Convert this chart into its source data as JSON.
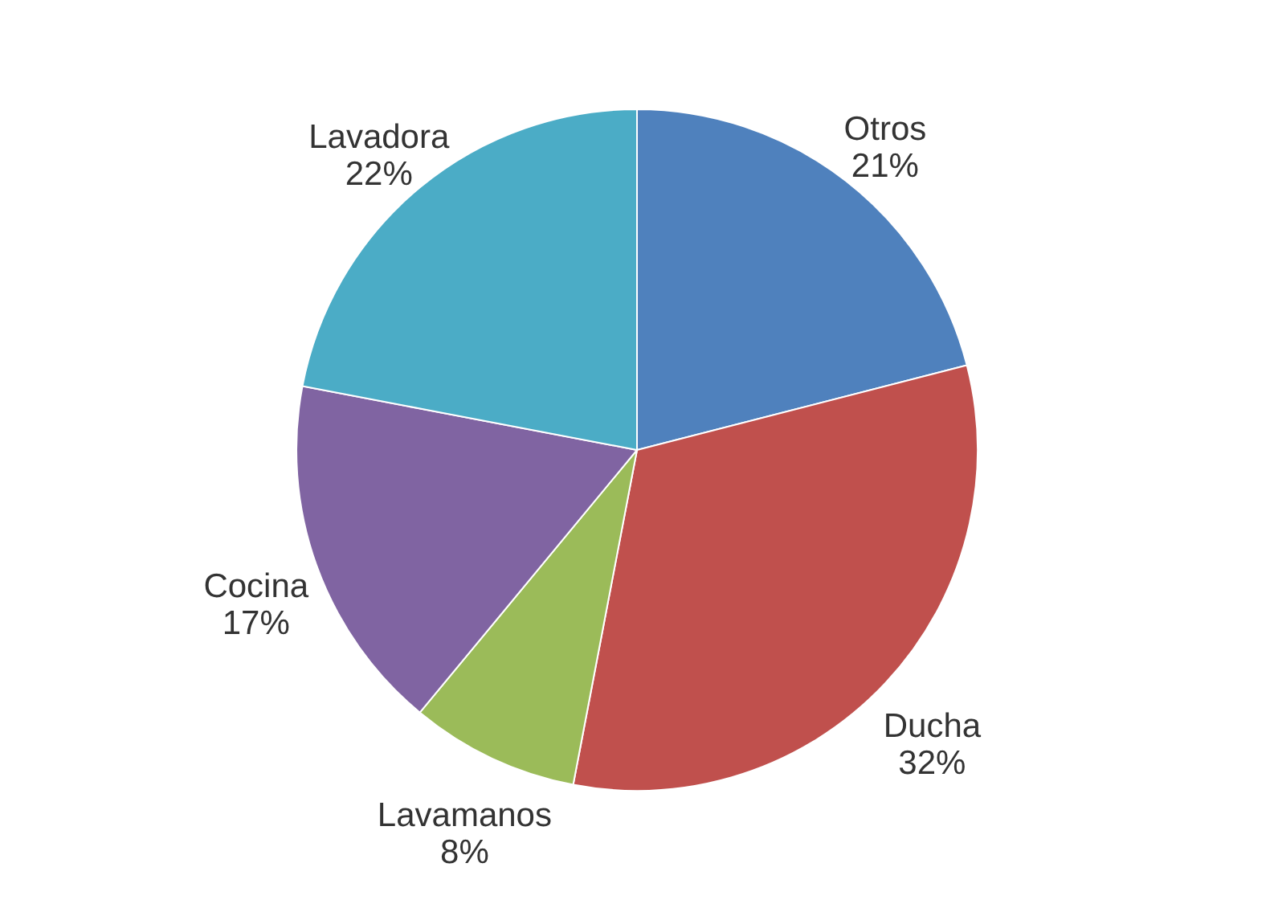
{
  "chart_data": {
    "type": "pie",
    "categories": [
      "Otros",
      "Ducha",
      "Lavamanos",
      "Cocina",
      "Lavadora"
    ],
    "values": [
      21,
      32,
      8,
      17,
      22
    ],
    "value_labels": [
      "21%",
      "32%",
      "8%",
      "17%",
      "22%"
    ],
    "colors": [
      "#4f81bd",
      "#c0504d",
      "#9bbb59",
      "#8064a2",
      "#4bacc6"
    ]
  }
}
